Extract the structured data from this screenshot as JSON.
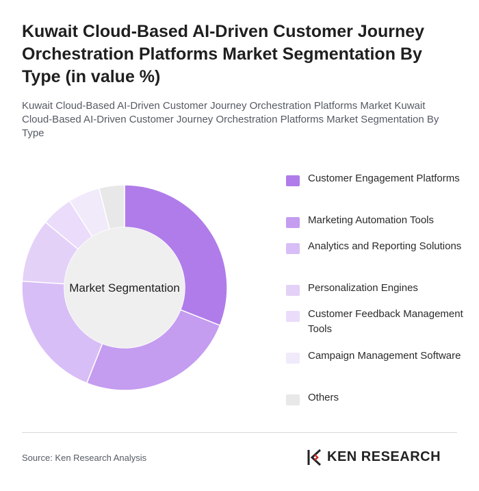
{
  "title": "Kuwait Cloud-Based AI-Driven Customer Journey Orchestration Platforms Market Segmentation By Type (in value %)",
  "subtitle": "Kuwait Cloud-Based AI-Driven Customer Journey Orchestration Platforms Market Kuwait Cloud-Based AI-Driven Customer Journey Orchestration Platforms Market Segmentation By Type",
  "center_label": "Market Segmentation",
  "source": "Source: Ken Research Analysis",
  "logo_text": "KEN RESEARCH",
  "chart_data": {
    "type": "pie",
    "variant": "donut",
    "unit": "%",
    "legend_position": "right",
    "categories": [
      "Customer Engagement Platforms",
      "Marketing Automation Tools",
      "Analytics and Reporting Solutions",
      "Personalization Engines",
      "Customer Feedback Management Tools",
      "Campaign Management Software",
      "Others"
    ],
    "values": [
      31,
      25,
      20,
      10,
      5,
      5,
      4
    ],
    "colors": [
      "#b07cea",
      "#c49cf0",
      "#d8bef6",
      "#e3d1f8",
      "#eadcfa",
      "#f1eafb",
      "#e8e8e8"
    ]
  }
}
